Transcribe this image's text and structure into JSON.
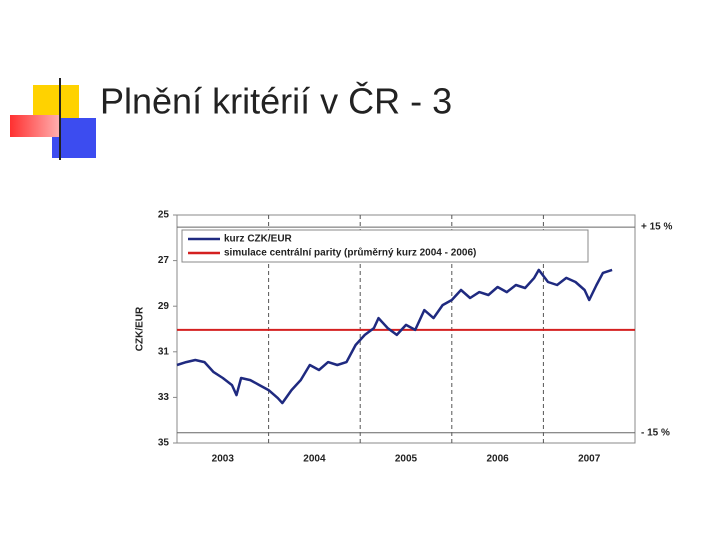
{
  "slide_title": "Plnění kritérií v ČR - 3",
  "chart_data": {
    "type": "line",
    "ylabel": "CZK/EUR",
    "ylim": [
      25,
      35
    ],
    "y_inverted": true,
    "yticks": [
      25,
      27,
      29,
      31,
      33,
      35
    ],
    "xlim": [
      2003,
      2008
    ],
    "xticks": [
      {
        "value": 2003.5,
        "label": "2003"
      },
      {
        "value": 2004.5,
        "label": "2004"
      },
      {
        "value": 2005.5,
        "label": "2005"
      },
      {
        "value": 2006.5,
        "label": "2006"
      },
      {
        "value": 2007.5,
        "label": "2007"
      }
    ],
    "xgrid": [
      2004,
      2005,
      2006,
      2007
    ],
    "series": [
      {
        "name": "kurz CZK/EUR",
        "color": "#1f2a80",
        "x": [
          2003.0,
          2003.1,
          2003.2,
          2003.3,
          2003.4,
          2003.5,
          2003.6,
          2003.65,
          2003.7,
          2003.8,
          2003.9,
          2004.0,
          2004.1,
          2004.15,
          2004.25,
          2004.35,
          2004.45,
          2004.55,
          2004.65,
          2004.75,
          2004.85,
          2004.95,
          2005.05,
          2005.15,
          2005.2,
          2005.3,
          2005.4,
          2005.5,
          2005.6,
          2005.7,
          2005.8,
          2005.9,
          2006.0,
          2006.1,
          2006.2,
          2006.3,
          2006.4,
          2006.5,
          2006.6,
          2006.7,
          2006.8,
          2006.9,
          2006.95,
          2007.05,
          2007.15,
          2007.25,
          2007.35,
          2007.45,
          2007.5,
          2007.58,
          2007.65,
          2007.75
        ],
        "values": [
          31.58,
          31.45,
          31.36,
          31.45,
          31.89,
          32.15,
          32.46,
          32.9,
          32.15,
          32.24,
          32.46,
          32.68,
          33.03,
          33.25,
          32.68,
          32.24,
          31.58,
          31.8,
          31.45,
          31.58,
          31.45,
          30.7,
          30.26,
          29.96,
          29.52,
          29.96,
          30.26,
          29.82,
          30.04,
          29.17,
          29.52,
          28.95,
          28.73,
          28.29,
          28.64,
          28.38,
          28.51,
          28.16,
          28.38,
          28.07,
          28.2,
          27.76,
          27.41,
          27.94,
          28.07,
          27.76,
          27.94,
          28.29,
          28.73,
          28.07,
          27.54,
          27.41
        ]
      }
    ],
    "reference_lines": [
      {
        "name": "simulace centrální parity (průměrný kurz 2004 - 2006)",
        "color": "#d42020",
        "value": 30.04
      }
    ],
    "bands": [
      {
        "value": 25.53,
        "label": "+ 15 %"
      },
      {
        "value": 34.55,
        "label": "- 15 %"
      }
    ]
  }
}
